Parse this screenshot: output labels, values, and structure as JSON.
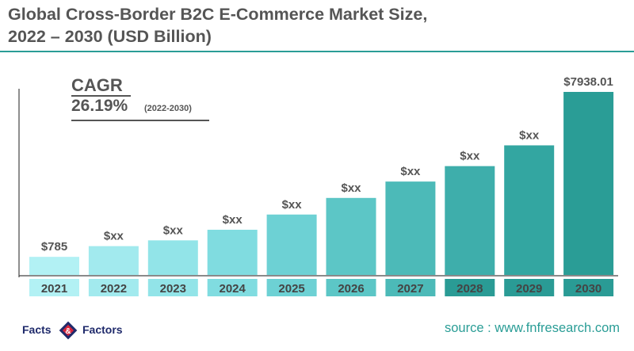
{
  "title": {
    "line1": "Global Cross-Border B2C E-Commerce Market Size,",
    "line2": "2022 – 2030 (USD Billion)"
  },
  "cagr": {
    "label": "CAGR",
    "value": "26.19%",
    "period": "(2022-2030)"
  },
  "chart_data": {
    "type": "bar",
    "categories": [
      "2021",
      "2022",
      "2023",
      "2024",
      "2025",
      "2026",
      "2027",
      "2028",
      "2029",
      "2030"
    ],
    "values": [
      785,
      1250,
      1500,
      1960,
      2620,
      3340,
      4050,
      4720,
      5620,
      7938.01
    ],
    "data_labels": [
      "$785",
      "$xx",
      "$xx",
      "$xx",
      "$xx",
      "$xx",
      "$xx",
      "$xx",
      "$xx",
      "$7938.01"
    ],
    "colors": [
      "#b2f1f4",
      "#a2eaee",
      "#92e4e8",
      "#80dce0",
      "#6dd1d4",
      "#5cc6c6",
      "#4cbab8",
      "#3eaeab",
      "#33a6a1",
      "#2a9d96"
    ],
    "label_band_colors": [
      "#b2f1f4",
      "#a2eaee",
      "#92e4e8",
      "#80dce0",
      "#6dd1d4",
      "#5cc6c6",
      "#4cbab8",
      "#2a9b95",
      "#2a9b95",
      "#2a9b95"
    ],
    "ylim": [
      0,
      7938.01
    ],
    "grid": false,
    "title": "Global Cross-Border B2C E-Commerce Market Size, 2022 – 2030 (USD Billion)"
  },
  "logo": {
    "left": "Facts",
    "right": "Factors",
    "mark": "&",
    "primary_color": "#1f2a6b",
    "accent_color": "#d7263d"
  },
  "source": "source : www.fnfresearch.com"
}
